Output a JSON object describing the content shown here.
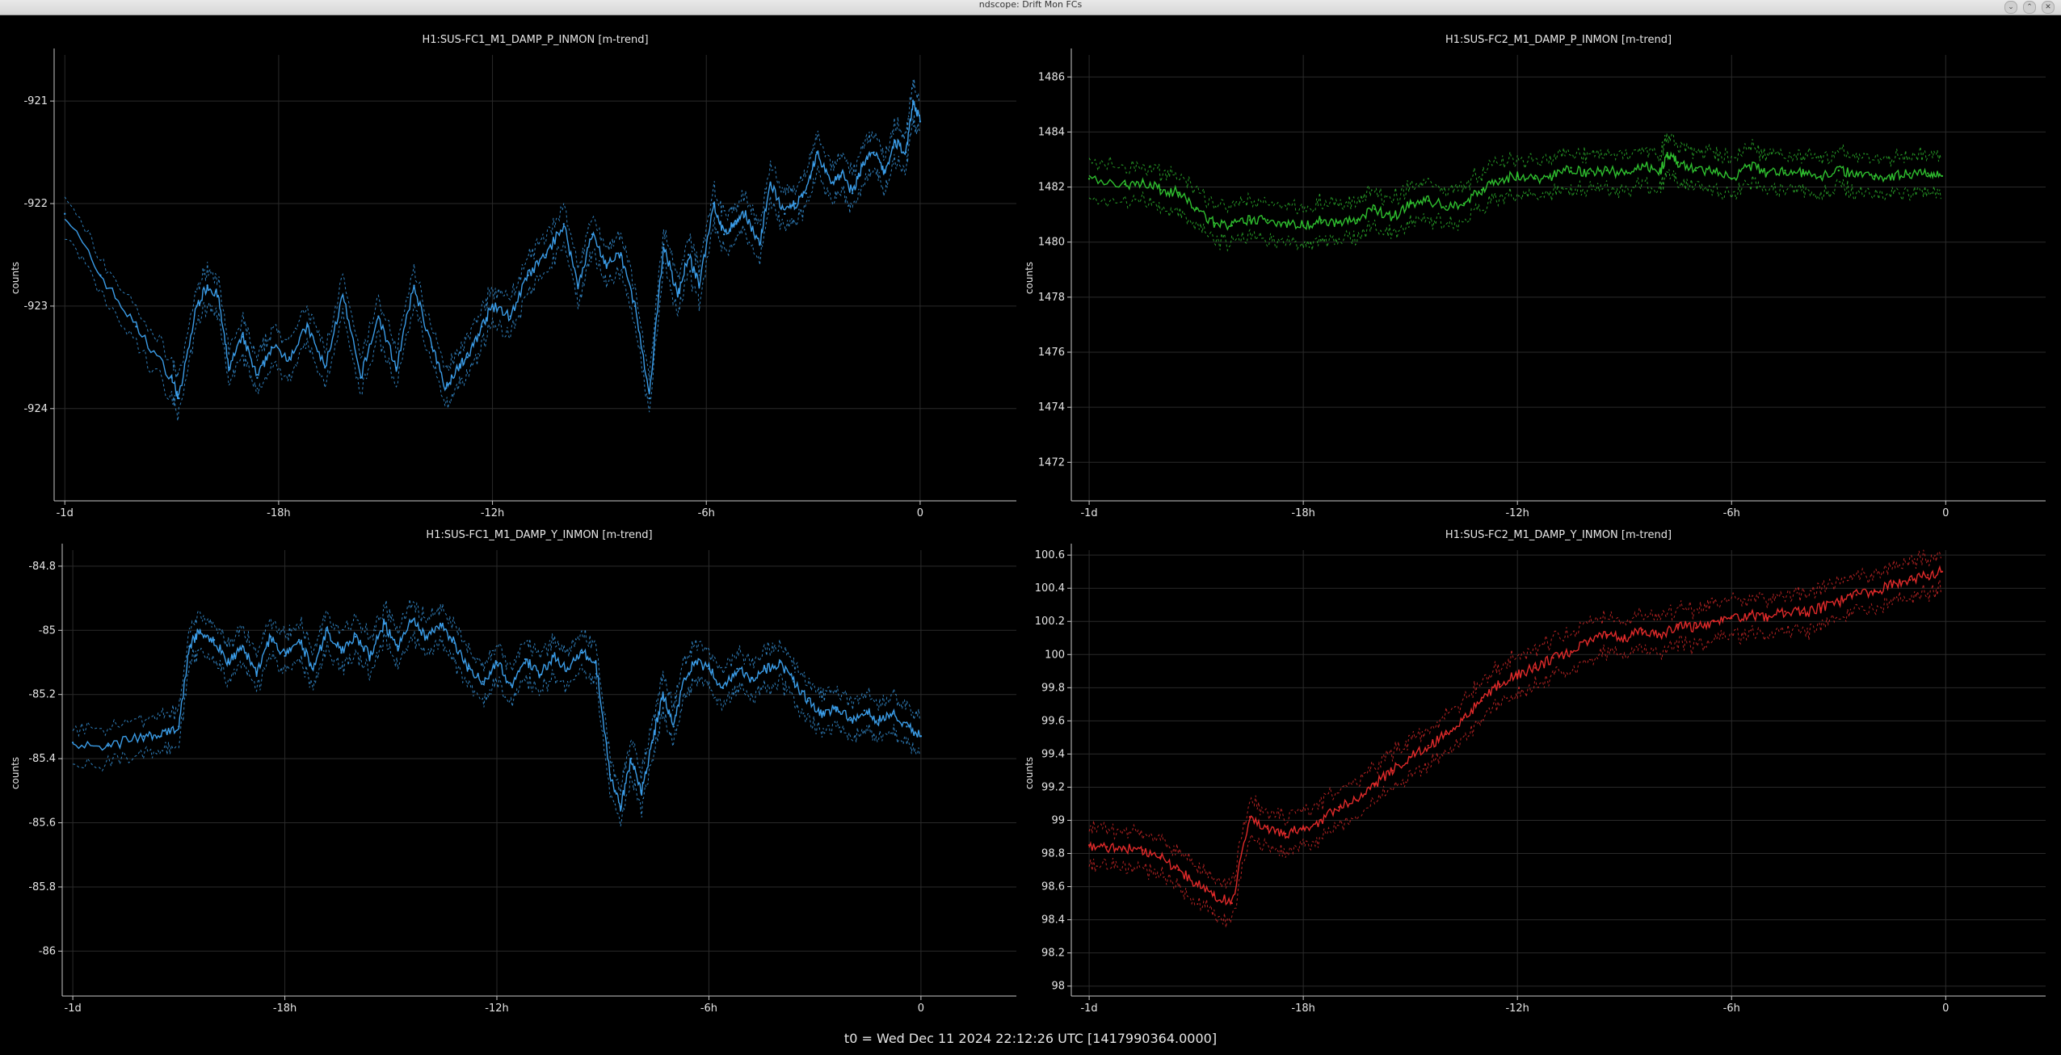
{
  "window": {
    "title": "ndscope: Drift Mon FCs",
    "controls": [
      "minimize",
      "maximize",
      "close"
    ]
  },
  "footer": {
    "t0_text": "t0 = Wed Dec 11 2024 22:12:26 UTC [1417990364.0000]"
  },
  "colors": {
    "background": "#000000",
    "axis": "#c8c8c8",
    "grid": "#2a2a2a",
    "text": "#e6e6e6"
  },
  "chart_data": [
    {
      "type": "line",
      "title": "H1:SUS-FC1_M1_DAMP_P_INMON [m-trend]",
      "ylabel": "counts",
      "xlabel": "",
      "x_ticks": [
        "-1d",
        "-18h",
        "-12h",
        "-6h",
        "0"
      ],
      "x_tick_values": [
        -24,
        -18,
        -12,
        -6,
        0
      ],
      "xlim": [
        -24.3,
        2.7
      ],
      "y_ticks": [
        -921,
        -922,
        -923,
        -924
      ],
      "ylim": [
        -924.9,
        -920.55
      ],
      "grid": true,
      "color": "#3b9de8",
      "series": [
        {
          "x": [
            -24,
            -23,
            -22,
            -21,
            -20.8,
            -20.3,
            -20,
            -19.7,
            -19.4,
            -19,
            -18.6,
            -18.2,
            -17.7,
            -17.2,
            -16.7,
            -16.2,
            -15.7,
            -15.2,
            -14.7,
            -14.2,
            -13.7,
            -13.3,
            -13,
            -12.7,
            -12.3,
            -12,
            -11.5,
            -11,
            -10.5,
            -10,
            -9.6,
            -9.2,
            -8.8,
            -8.4,
            -8,
            -7.6,
            -7.2,
            -6.8,
            -6.5,
            -6.2,
            -5.8,
            -5.5,
            -5.2,
            -4.9,
            -4.5,
            -4.2,
            -3.8,
            -3.5,
            -3.2,
            -2.9,
            -2.5,
            -2.2,
            -1.9,
            -1.6,
            -1.3,
            -1,
            -0.7,
            -0.4,
            -0.2,
            0
          ],
          "y": [
            -922.1,
            -922.7,
            -923.2,
            -923.7,
            -923.9,
            -923.0,
            -922.8,
            -922.9,
            -923.6,
            -923.3,
            -923.7,
            -923.4,
            -923.5,
            -923.2,
            -923.6,
            -922.9,
            -923.7,
            -923.1,
            -923.6,
            -922.8,
            -923.4,
            -923.8,
            -923.6,
            -923.5,
            -923.2,
            -923.0,
            -923.1,
            -922.7,
            -922.5,
            -922.2,
            -922.8,
            -922.3,
            -922.6,
            -922.5,
            -923.0,
            -923.9,
            -922.4,
            -922.9,
            -922.5,
            -922.8,
            -922.0,
            -922.3,
            -922.2,
            -922.1,
            -922.4,
            -921.8,
            -922.1,
            -922.0,
            -921.9,
            -921.5,
            -921.8,
            -921.7,
            -921.9,
            -921.6,
            -921.5,
            -921.7,
            -921.4,
            -921.5,
            -921.0,
            -921.2
          ]
        }
      ]
    },
    {
      "type": "line",
      "title": "H1:SUS-FC2_M1_DAMP_P_INMON [m-trend]",
      "ylabel": "counts",
      "xlabel": "",
      "x_ticks": [
        "-1d",
        "-18h",
        "-12h",
        "-6h",
        "0"
      ],
      "x_tick_values": [
        -24,
        -18,
        -12,
        -6,
        0
      ],
      "xlim": [
        -24.5,
        2.8
      ],
      "y_ticks": [
        1486,
        1484,
        1482,
        1480,
        1478,
        1476,
        1474,
        1472
      ],
      "ylim": [
        1470.6,
        1486.8
      ],
      "grid": true,
      "color": "#2fbf2f",
      "series": [
        {
          "x": [
            -24,
            -23,
            -22.5,
            -22,
            -21.5,
            -21,
            -20.5,
            -20,
            -19.5,
            -19,
            -18.5,
            -18,
            -17.5,
            -17,
            -16.5,
            -16,
            -15.5,
            -15,
            -14.5,
            -14,
            -13.5,
            -13,
            -12.5,
            -12,
            -11.5,
            -11,
            -10.5,
            -10,
            -9.5,
            -9,
            -8.5,
            -8,
            -7.8,
            -7.5,
            -7,
            -6.5,
            -6,
            -5.5,
            -5,
            -4.5,
            -4,
            -3.5,
            -3,
            -2.5,
            -2,
            -1.5,
            -1,
            -0.5,
            -0.1
          ],
          "y": [
            1482.3,
            1482.1,
            1482.2,
            1481.9,
            1481.8,
            1481.2,
            1480.7,
            1480.6,
            1480.8,
            1480.8,
            1480.7,
            1480.6,
            1480.8,
            1480.7,
            1480.8,
            1481.2,
            1480.9,
            1481.4,
            1481.5,
            1481.3,
            1481.4,
            1481.9,
            1482.3,
            1482.4,
            1482.3,
            1482.4,
            1482.7,
            1482.5,
            1482.6,
            1482.5,
            1482.8,
            1482.6,
            1483.1,
            1482.9,
            1482.6,
            1482.6,
            1482.3,
            1482.8,
            1482.5,
            1482.6,
            1482.5,
            1482.4,
            1482.6,
            1482.5,
            1482.4,
            1482.4,
            1482.5,
            1482.5,
            1482.4
          ]
        }
      ]
    },
    {
      "type": "line",
      "title": "H1:SUS-FC1_M1_DAMP_Y_INMON [m-trend]",
      "ylabel": "counts",
      "xlabel": "",
      "x_ticks": [
        "-1d",
        "-18h",
        "-12h",
        "-6h",
        "0"
      ],
      "x_tick_values": [
        -24,
        -18,
        -12,
        -6,
        0
      ],
      "xlim": [
        -24.3,
        2.7
      ],
      "y_ticks": [
        -84.8,
        -85,
        -85.2,
        -85.4,
        -85.6,
        -85.8,
        -86
      ],
      "ylim": [
        -86.14,
        -84.75
      ],
      "grid": true,
      "color": "#3b9de8",
      "series": [
        {
          "x": [
            -24,
            -23,
            -22,
            -21.5,
            -21,
            -20.7,
            -20.4,
            -20,
            -19.6,
            -19.2,
            -18.8,
            -18.4,
            -18,
            -17.6,
            -17.2,
            -16.8,
            -16.4,
            -16,
            -15.6,
            -15.2,
            -14.8,
            -14.4,
            -14,
            -13.6,
            -13.2,
            -12.8,
            -12.4,
            -12,
            -11.6,
            -11.2,
            -10.8,
            -10.4,
            -10,
            -9.6,
            -9.2,
            -8.8,
            -8.5,
            -8.2,
            -7.9,
            -7.6,
            -7.3,
            -7,
            -6.7,
            -6.4,
            -6,
            -5.6,
            -5.2,
            -4.8,
            -4.4,
            -4,
            -3.6,
            -3.2,
            -2.8,
            -2.4,
            -2,
            -1.6,
            -1.2,
            -0.8,
            -0.4,
            0
          ],
          "y": [
            -85.35,
            -85.36,
            -85.33,
            -85.33,
            -85.3,
            -85.05,
            -85.0,
            -85.03,
            -85.1,
            -85.05,
            -85.13,
            -85.02,
            -85.08,
            -85.03,
            -85.12,
            -85.0,
            -85.07,
            -85.02,
            -85.08,
            -84.98,
            -85.05,
            -84.97,
            -85.02,
            -84.98,
            -85.04,
            -85.12,
            -85.16,
            -85.1,
            -85.17,
            -85.09,
            -85.14,
            -85.08,
            -85.12,
            -85.07,
            -85.1,
            -85.45,
            -85.55,
            -85.4,
            -85.5,
            -85.35,
            -85.2,
            -85.3,
            -85.15,
            -85.1,
            -85.12,
            -85.18,
            -85.12,
            -85.15,
            -85.12,
            -85.1,
            -85.16,
            -85.22,
            -85.26,
            -85.24,
            -85.28,
            -85.25,
            -85.28,
            -85.26,
            -85.3,
            -85.33
          ]
        }
      ]
    },
    {
      "type": "line",
      "title": "H1:SUS-FC2_M1_DAMP_Y_INMON [m-trend]",
      "ylabel": "counts",
      "xlabel": "",
      "x_ticks": [
        "-1d",
        "-18h",
        "-12h",
        "-6h",
        "0"
      ],
      "x_tick_values": [
        -24,
        -18,
        -12,
        -6,
        0
      ],
      "xlim": [
        -24.5,
        2.8
      ],
      "y_ticks": [
        100.6,
        100.4,
        100.2,
        100,
        99.8,
        99.6,
        99.4,
        99.2,
        99,
        98.8,
        98.6,
        98.4,
        98.2,
        98
      ],
      "ylim": [
        97.94,
        100.63
      ],
      "grid": true,
      "color": "#e02a2a",
      "series": [
        {
          "x": [
            -24,
            -23.5,
            -23,
            -22.5,
            -22,
            -21.5,
            -21,
            -20.5,
            -20,
            -19.5,
            -19,
            -18.5,
            -18,
            -17.5,
            -17,
            -16.5,
            -16,
            -15.5,
            -15,
            -14.5,
            -14,
            -13.5,
            -13,
            -12.5,
            -12,
            -11.5,
            -11,
            -10.5,
            -10,
            -9.5,
            -9,
            -8.5,
            -8,
            -7.5,
            -7,
            -6.5,
            -6,
            -5.5,
            -5,
            -4.5,
            -4,
            -3.5,
            -3,
            -2.5,
            -2,
            -1.5,
            -1,
            -0.5,
            -0.1
          ],
          "y": [
            98.85,
            98.84,
            98.83,
            98.82,
            98.78,
            98.7,
            98.62,
            98.55,
            98.5,
            99.02,
            98.95,
            98.92,
            98.95,
            99.0,
            99.08,
            99.12,
            99.22,
            99.3,
            99.38,
            99.45,
            99.52,
            99.62,
            99.72,
            99.82,
            99.88,
            99.92,
            99.98,
            100.02,
            100.08,
            100.12,
            100.1,
            100.15,
            100.12,
            100.18,
            100.16,
            100.2,
            100.22,
            100.24,
            100.22,
            100.26,
            100.25,
            100.28,
            100.32,
            100.36,
            100.38,
            100.42,
            100.45,
            100.48,
            100.5
          ]
        }
      ]
    }
  ]
}
